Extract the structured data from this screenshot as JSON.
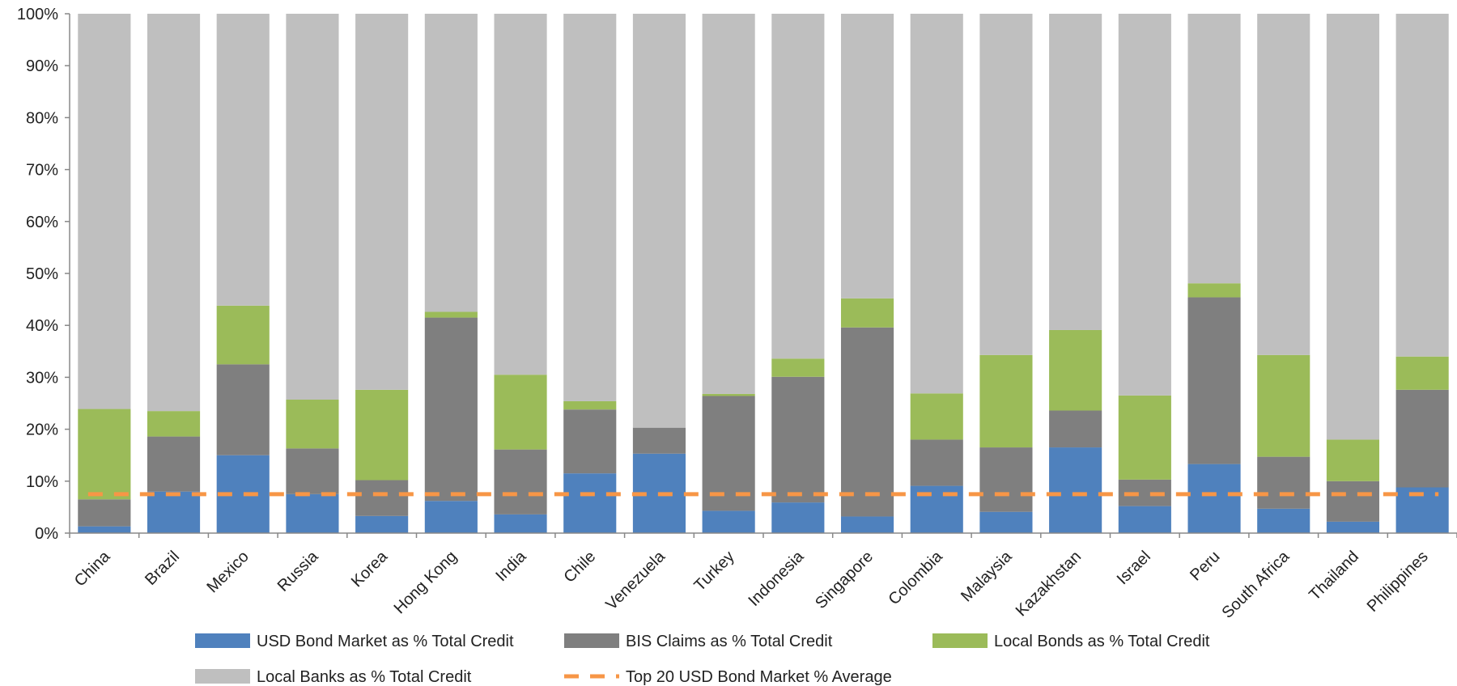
{
  "chart_data": {
    "type": "bar",
    "stacked": true,
    "percent_stacked": true,
    "categories": [
      "China",
      "Brazil",
      "Mexico",
      "Russia",
      "Korea",
      "Hong Kong",
      "India",
      "Chile",
      "Venezuela",
      "Turkey",
      "Indonesia",
      "Singapore",
      "Colombia",
      "Malaysia",
      "Kazakhstan",
      "Israel",
      "Peru",
      "South Africa",
      "Thailand",
      "Philippines"
    ],
    "series": [
      {
        "name": "USD Bond Market as % Total Credit",
        "color": "#4f81bd",
        "values": [
          1.3,
          8.0,
          15.0,
          7.5,
          3.3,
          6.2,
          3.6,
          11.5,
          15.3,
          4.3,
          5.9,
          3.2,
          9.1,
          4.1,
          16.5,
          5.2,
          13.3,
          4.7,
          2.2,
          8.8
        ]
      },
      {
        "name": "BIS Claims as % Total Credit",
        "color": "#7f7f7f",
        "values": [
          5.2,
          10.6,
          17.5,
          8.8,
          6.9,
          35.3,
          12.5,
          12.3,
          5.0,
          22.1,
          24.2,
          36.4,
          8.9,
          12.4,
          7.1,
          5.1,
          32.1,
          10.0,
          7.8,
          18.8
        ]
      },
      {
        "name": "Local Bonds as % Total Credit",
        "color": "#9bbb59",
        "values": [
          17.4,
          4.9,
          11.3,
          9.4,
          17.4,
          1.1,
          14.4,
          1.6,
          0.0,
          0.4,
          3.5,
          5.6,
          8.9,
          17.8,
          15.5,
          16.2,
          2.7,
          19.6,
          8.0,
          6.4
        ]
      },
      {
        "name": "Local Banks as % Total Credit",
        "color": "#bfbfbf",
        "values": [
          76.1,
          76.5,
          56.2,
          74.3,
          72.4,
          57.4,
          69.5,
          74.6,
          79.7,
          73.2,
          66.4,
          54.8,
          73.1,
          65.7,
          60.9,
          73.5,
          51.9,
          65.7,
          82.0,
          66.0
        ]
      }
    ],
    "average_line": {
      "name": "Top 20 USD Bond Market %  Average",
      "value": 7.5,
      "color": "#f79646"
    },
    "ylim": [
      0,
      100
    ],
    "yticks": [
      "0%",
      "10%",
      "20%",
      "30%",
      "40%",
      "50%",
      "60%",
      "70%",
      "80%",
      "90%",
      "100%"
    ],
    "grid": false,
    "legend": "bottom"
  }
}
